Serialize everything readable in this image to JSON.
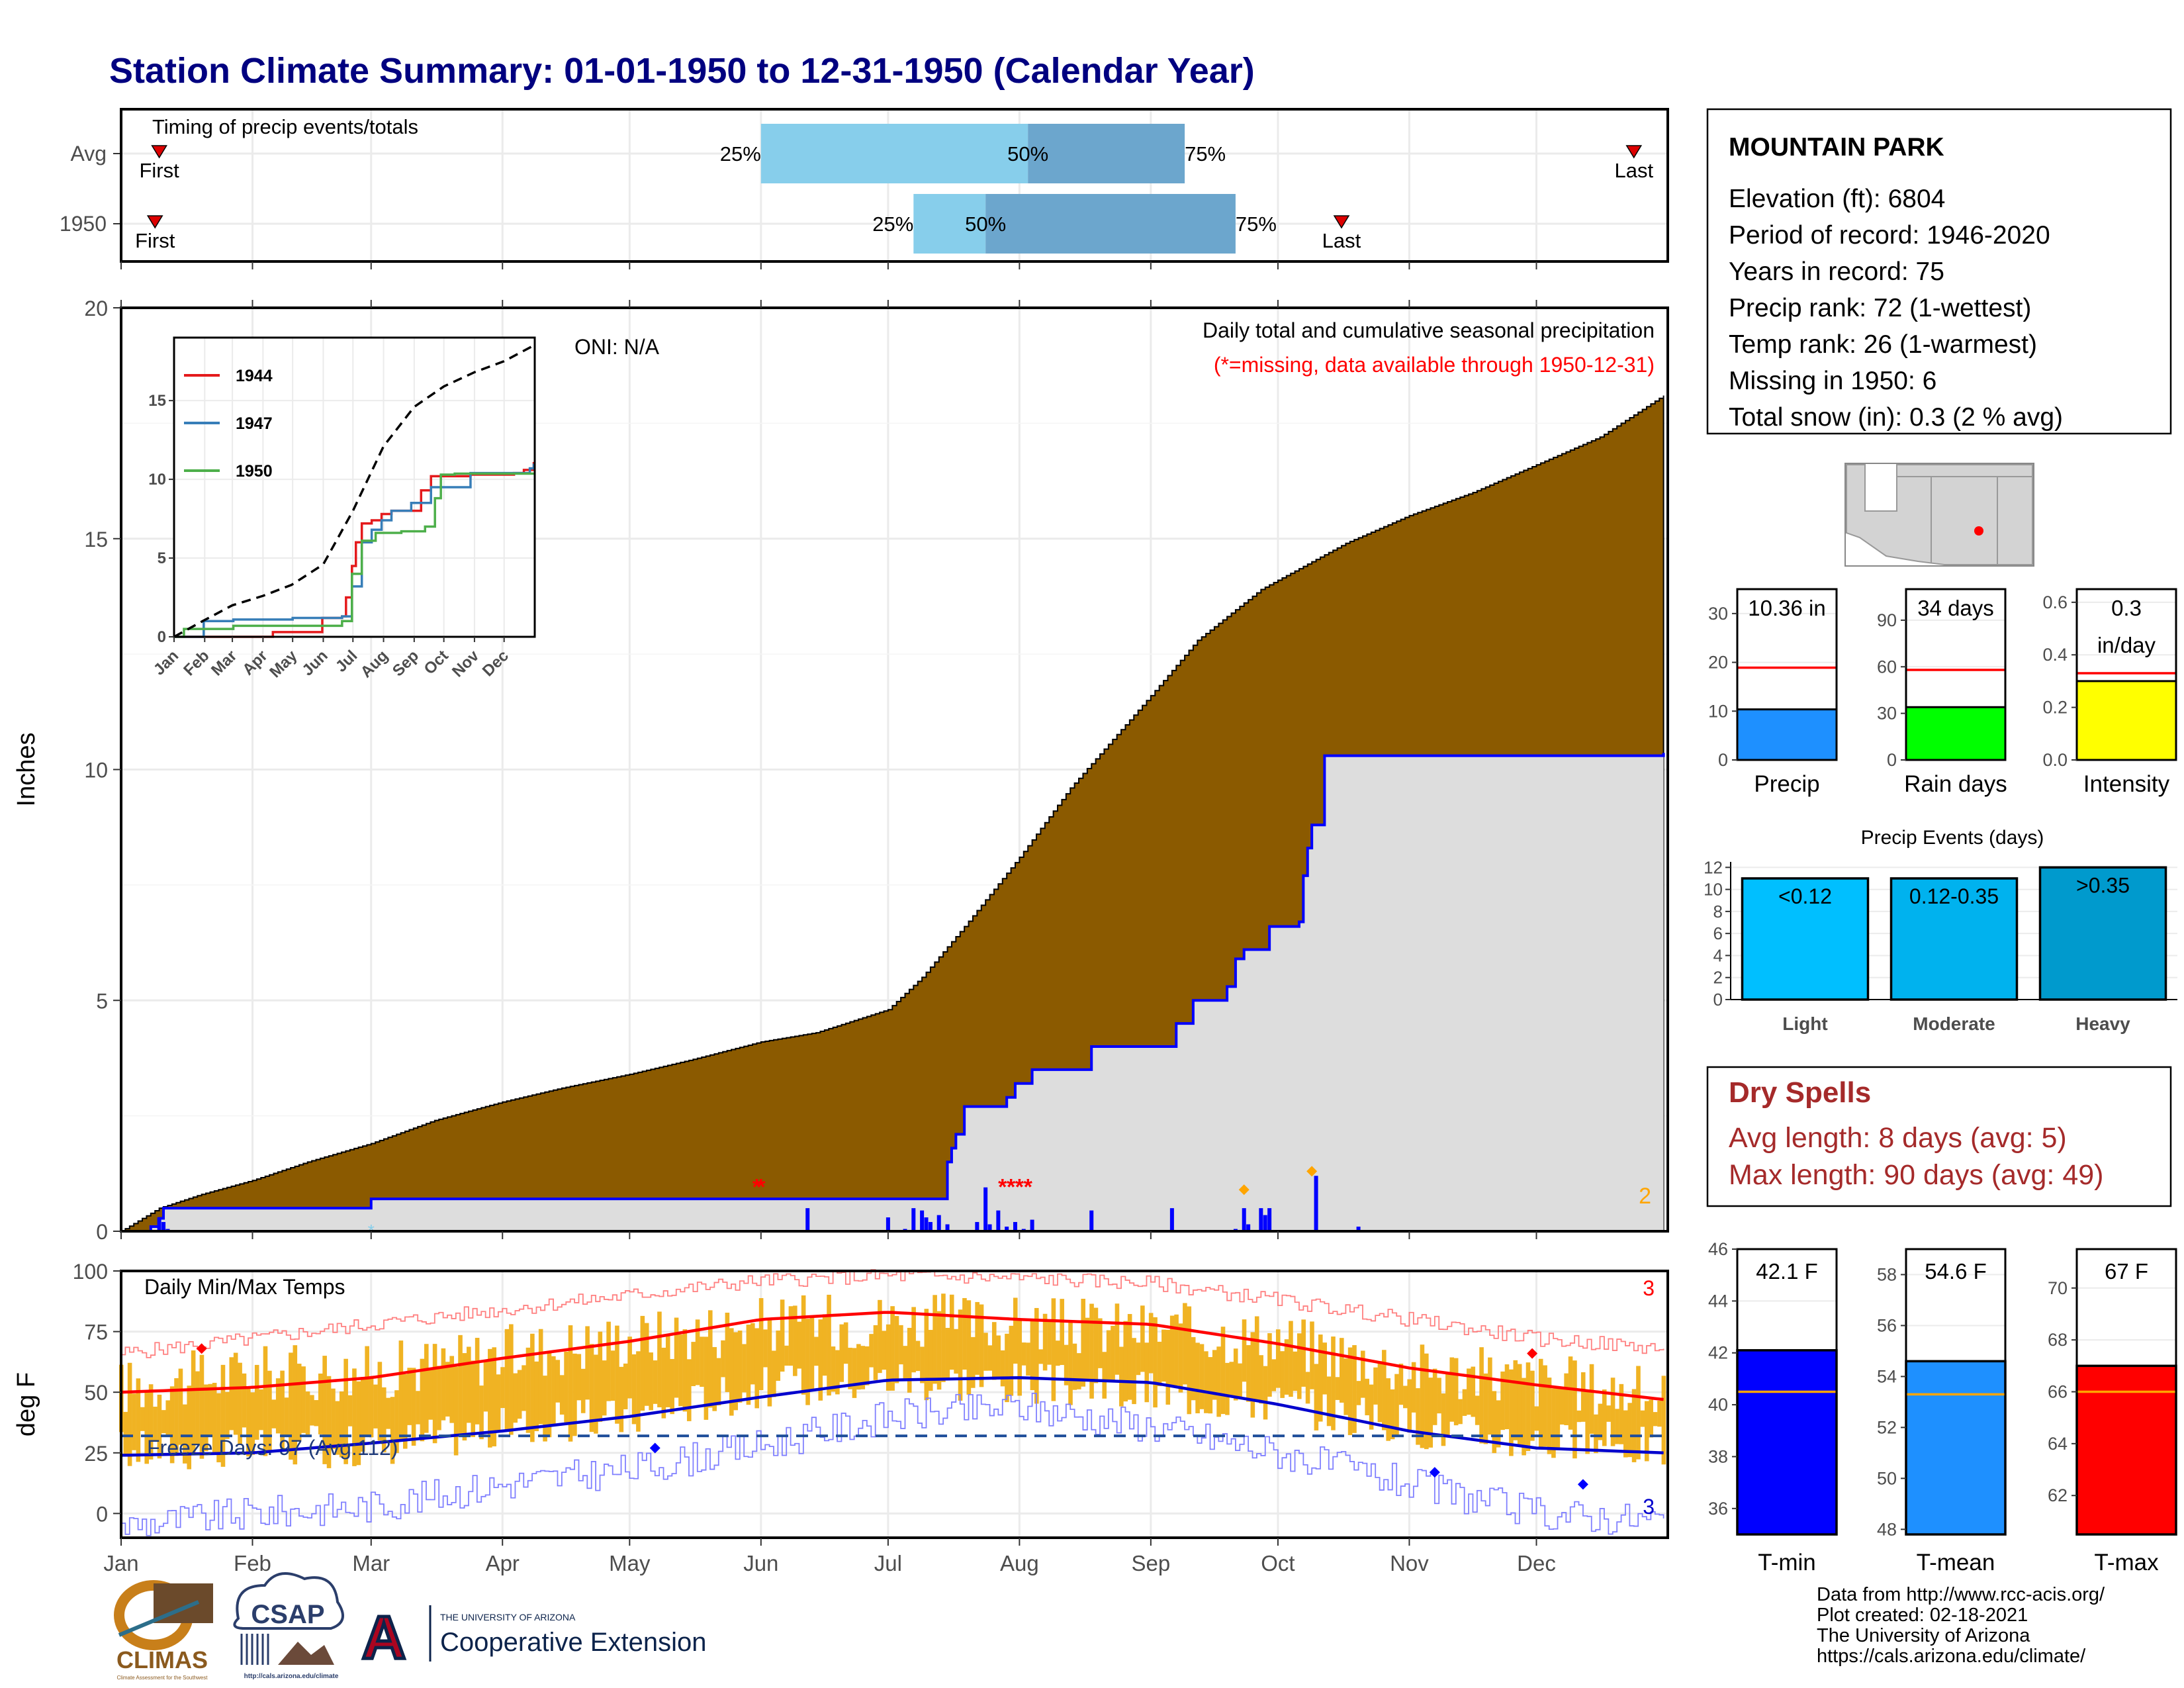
{
  "page": {
    "title": "Station Climate Summary: 01-01-1950 to 12-31-1950 (Calendar Year)",
    "months": [
      "Jan",
      "Feb",
      "Mar",
      "Apr",
      "May",
      "Jun",
      "Jul",
      "Aug",
      "Sep",
      "Oct",
      "Nov",
      "Dec"
    ],
    "month_starts_doy": [
      1,
      32,
      60,
      91,
      121,
      152,
      182,
      213,
      244,
      274,
      305,
      335
    ],
    "credits": [
      "Data from http://www.rcc-acis.org/",
      "Plot created: 02-18-2021",
      "The University of Arizona",
      "https://cals.arizona.edu/climate/"
    ],
    "logos": {
      "climas": "CLIMAS",
      "climas_sub": "Climate Assessment for the Southwest",
      "csap": "CSAP",
      "csap_url": "http://cals.arizona.edu/climate",
      "ua_line1": "THE UNIVERSITY OF ARIZONA",
      "ua_line2": "Cooperative Extension",
      "ua_letter": "A"
    }
  },
  "station": {
    "name": "MOUNTAIN PARK",
    "lines": [
      "Elevation (ft): 6804",
      "Period of record: 1946-2020",
      "Years in record: 75",
      "Precip rank: 72 (1-wettest)",
      "Temp rank: 26 (1-warmest)",
      "Missing in 1950: 6",
      "Total snow (in): 0.3 (2 % avg)"
    ],
    "marker_color": "#ff0000"
  },
  "chart_data": [
    {
      "id": "timing",
      "type": "bar",
      "title": "Timing of precip events/totals",
      "rows": [
        {
          "label": "Avg",
          "first_doy": 10,
          "last_doy": 358,
          "p25_doy": 152,
          "p50_doy": 215,
          "p75_doy": 252,
          "first_label": "First",
          "last_label": "Last",
          "p25_label": "25%",
          "p50_label": "50%",
          "p75_label": "75%"
        },
        {
          "label": "1950",
          "first_doy": 9,
          "last_doy": 289,
          "p25_doy": 188,
          "p50_doy": 205,
          "p75_doy": 264,
          "first_label": "First",
          "last_label": "Last",
          "p25_label": "25%",
          "p50_label": "50%",
          "p75_label": "75%"
        }
      ],
      "colors": {
        "light": "#87ceeb",
        "dark": "#6ca6cd",
        "marker": "#dd0000"
      }
    },
    {
      "id": "precip",
      "type": "area",
      "title": "Daily total and cumulative seasonal precipitation",
      "note": "(*=missing, data available through 1950-12-31)",
      "ylabel": "Inches",
      "ylim": [
        0,
        20
      ],
      "yticks": [
        0,
        5,
        10,
        15,
        20
      ],
      "oni_label": "ONI: N/A",
      "count_label": "2",
      "avg_cumulative": {
        "x": [
          1,
          10,
          20,
          32,
          45,
          60,
          75,
          91,
          105,
          121,
          135,
          152,
          165,
          182,
          190,
          200,
          213,
          225,
          244,
          255,
          270,
          290,
          305,
          320,
          335,
          350,
          365
        ],
        "y": [
          0,
          0.5,
          0.8,
          1.1,
          1.5,
          1.9,
          2.4,
          2.8,
          3.1,
          3.4,
          3.7,
          4.1,
          4.3,
          4.8,
          5.5,
          6.6,
          8.1,
          9.6,
          11.6,
          12.8,
          13.9,
          14.9,
          15.5,
          16.0,
          16.6,
          17.2,
          18.1
        ]
      },
      "cumulative_1950": {
        "x": [
          1,
          8,
          10,
          11,
          30,
          60,
          152,
          163,
          164,
          169,
          170,
          172,
          173,
          175,
          181,
          190,
          192,
          196,
          197,
          198,
          200,
          210,
          212,
          216,
          230,
          231,
          250,
          254,
          262,
          264,
          266,
          270,
          272,
          276,
          278,
          279,
          280,
          281,
          282,
          283,
          284,
          285,
          365
        ],
        "y": [
          0,
          0.1,
          0.28,
          0.5,
          0.5,
          0.7,
          0.7,
          0.7,
          0.7,
          0.7,
          0.7,
          0.7,
          0.7,
          0.7,
          0.7,
          0.7,
          0.7,
          1.5,
          1.8,
          2.1,
          2.7,
          2.9,
          3.2,
          3.5,
          4.0,
          4.0,
          4.5,
          5.0,
          5.3,
          5.9,
          6.1,
          6.1,
          6.6,
          6.6,
          6.6,
          6.7,
          7.7,
          8.3,
          8.8,
          8.8,
          8.8,
          10.3,
          10.36
        ]
      },
      "daily_bars": [
        {
          "doy": 10,
          "v": 0.3
        },
        {
          "doy": 11,
          "v": 0.2
        },
        {
          "doy": 12,
          "v": 0.05
        },
        {
          "doy": 163,
          "v": 0.5
        },
        {
          "doy": 182,
          "v": 0.3
        },
        {
          "doy": 186,
          "v": 0.05
        },
        {
          "doy": 188,
          "v": 0.5
        },
        {
          "doy": 190,
          "v": 0.45
        },
        {
          "doy": 191,
          "v": 0.3
        },
        {
          "doy": 192,
          "v": 0.2
        },
        {
          "doy": 194,
          "v": 0.35
        },
        {
          "doy": 196,
          "v": 0.15
        },
        {
          "doy": 203,
          "v": 0.2
        },
        {
          "doy": 205,
          "v": 0.95
        },
        {
          "doy": 206,
          "v": 0.15
        },
        {
          "doy": 208,
          "v": 0.45
        },
        {
          "doy": 210,
          "v": 0.1
        },
        {
          "doy": 212,
          "v": 0.2
        },
        {
          "doy": 214,
          "v": 0.05
        },
        {
          "doy": 216,
          "v": 0.25
        },
        {
          "doy": 230,
          "v": 0.45
        },
        {
          "doy": 249,
          "v": 0.5
        },
        {
          "doy": 264,
          "v": 0.05
        },
        {
          "doy": 266,
          "v": 0.5
        },
        {
          "doy": 267,
          "v": 0.15
        },
        {
          "doy": 270,
          "v": 0.5
        },
        {
          "doy": 271,
          "v": 0.35
        },
        {
          "doy": 272,
          "v": 0.5
        },
        {
          "doy": 283,
          "v": 1.2
        },
        {
          "doy": 293,
          "v": 0.1
        }
      ],
      "missing_doy": [
        151,
        152,
        209,
        211,
        213,
        215
      ],
      "max_marks_doy": [
        [
          266,
          0.9
        ],
        [
          282,
          1.3
        ]
      ],
      "snow_marks_doy": [
        60
      ],
      "colors": {
        "avg_fill": "#8b5a00",
        "obs_fill": "#dddddd",
        "obs_line": "#0000ff",
        "bar": "#0000ff",
        "missing": "#ff0000",
        "max_mark": "#ffa500"
      }
    },
    {
      "id": "inset",
      "type": "line",
      "xlabels": [
        "Jan",
        "Feb",
        "Mar",
        "Apr",
        "May",
        "Jun",
        "Jul",
        "Aug",
        "Sep",
        "Oct",
        "Nov",
        "Dec"
      ],
      "ylim": [
        0,
        19
      ],
      "yticks": [
        0,
        5,
        10,
        15
      ],
      "series": [
        {
          "name": "1944",
          "color": "#e41a1c",
          "x": [
            1,
            60,
            100,
            150,
            170,
            175,
            180,
            185,
            190,
            200,
            210,
            220,
            250,
            260,
            300,
            345,
            355,
            365
          ],
          "y": [
            0,
            0,
            0.3,
            1.2,
            1.3,
            2.5,
            4.5,
            6.0,
            7.2,
            7.4,
            7.8,
            8.0,
            9.3,
            10.2,
            10.3,
            10.4,
            10.6,
            11.1
          ]
        },
        {
          "name": "1947",
          "color": "#377eb8",
          "x": [
            1,
            30,
            60,
            120,
            150,
            170,
            180,
            190,
            200,
            210,
            220,
            240,
            260,
            300,
            360,
            365
          ],
          "y": [
            0,
            1.0,
            1.1,
            1.2,
            1.2,
            1.3,
            3.2,
            6.0,
            6.8,
            7.4,
            8.0,
            8.5,
            9.5,
            10.4,
            10.7,
            11.0
          ]
        },
        {
          "name": "1950",
          "color": "#4daf4a",
          "x": [
            1,
            10,
            60,
            120,
            152,
            170,
            180,
            190,
            205,
            215,
            230,
            255,
            265,
            270,
            285,
            365
          ],
          "y": [
            0,
            0.5,
            0.7,
            0.7,
            0.7,
            1.0,
            4.0,
            6.1,
            6.6,
            6.6,
            6.7,
            7.0,
            8.8,
            10.3,
            10.36,
            10.36
          ]
        }
      ],
      "avg": {
        "x": [
          1,
          30,
          60,
          91,
          120,
          152,
          182,
          213,
          244,
          274,
          305,
          335,
          365
        ],
        "y": [
          0,
          1.0,
          2.0,
          2.6,
          3.3,
          4.6,
          8.0,
          12.1,
          14.6,
          15.9,
          16.8,
          17.5,
          18.5
        ]
      }
    },
    {
      "id": "temps",
      "type": "line",
      "title": "Daily Min/Max Temps",
      "ylabel": "deg F",
      "ylim": [
        -10,
        100
      ],
      "yticks": [
        0,
        25,
        50,
        75,
        100
      ],
      "freeze_line": 32,
      "freeze_label": "Freeze Days: 97 (Avg:112)",
      "count_top": "3",
      "count_bottom": "3",
      "avg_max": {
        "x": [
          1,
          32,
          60,
          91,
          121,
          152,
          182,
          213,
          244,
          274,
          305,
          335,
          365
        ],
        "y": [
          50,
          52,
          56,
          64,
          71,
          80,
          83,
          80,
          78,
          70,
          60,
          53,
          47
        ]
      },
      "avg_min": {
        "x": [
          1,
          32,
          60,
          91,
          121,
          152,
          182,
          213,
          244,
          274,
          305,
          335,
          365
        ],
        "y": [
          24,
          25,
          29,
          34,
          40,
          48,
          55,
          56,
          54,
          45,
          34,
          27,
          25
        ]
      },
      "record_max": {
        "x": [
          1,
          32,
          60,
          91,
          121,
          152,
          182,
          213,
          244,
          274,
          305,
          335,
          365
        ],
        "y": [
          66,
          72,
          78,
          84,
          90,
          96,
          98,
          97,
          95,
          88,
          80,
          72,
          68
        ]
      },
      "record_min": {
        "x": [
          1,
          32,
          60,
          91,
          121,
          152,
          182,
          213,
          244,
          274,
          305,
          335,
          365
        ],
        "y": [
          -5,
          0,
          3,
          12,
          18,
          28,
          40,
          44,
          36,
          25,
          12,
          0,
          -3
        ]
      },
      "obs_max_base": {
        "x": [
          1,
          32,
          60,
          91,
          121,
          152,
          182,
          213,
          244,
          274,
          305,
          335,
          365
        ],
        "y": [
          52,
          58,
          58,
          66,
          72,
          78,
          80,
          78,
          76,
          72,
          60,
          55,
          48
        ]
      },
      "obs_min_base": {
        "x": [
          1,
          32,
          60,
          91,
          121,
          152,
          182,
          213,
          244,
          274,
          305,
          335,
          365
        ],
        "y": [
          26,
          27,
          28,
          35,
          40,
          52,
          56,
          54,
          50,
          46,
          36,
          30,
          28
        ]
      },
      "record_marks": [
        [
          20,
          68,
          "#ff0000"
        ],
        [
          334,
          66,
          "#ff0000"
        ],
        [
          127,
          27,
          "#0000ff"
        ],
        [
          311,
          17,
          "#0000ff"
        ],
        [
          346,
          12,
          "#0000ff"
        ]
      ],
      "colors": {
        "bar": "#f0b323",
        "avg_max": "#ff0000",
        "avg_min": "#0000cd",
        "rec_max": "#ff8080",
        "rec_min": "#8080ff",
        "freeze": "#1f4e9a"
      }
    },
    {
      "id": "precip_summary",
      "type": "bar",
      "panels": [
        {
          "name": "Precip",
          "value": 10.36,
          "label_top": "10.36 in",
          "label_bottom": "",
          "avg": 18.9,
          "ylim": [
            0,
            35
          ],
          "yticks": [
            0,
            10,
            20,
            30
          ],
          "color": "#1e90ff",
          "tick_fmt": 0
        },
        {
          "name": "Rain days",
          "value": 34,
          "label_top": "34 days",
          "label_bottom": "",
          "avg": 58,
          "ylim": [
            0,
            110
          ],
          "yticks": [
            0,
            30,
            60,
            90
          ],
          "color": "#00ff00",
          "tick_fmt": 0
        },
        {
          "name": "Intensity",
          "value": 0.3,
          "label_top": "0.3",
          "label_bottom": "in/day",
          "avg": 0.33,
          "ylim": [
            0,
            0.65
          ],
          "yticks": [
            0.0,
            0.2,
            0.4,
            0.6
          ],
          "color": "#ffff00",
          "tick_fmt": 1
        }
      ],
      "avg_color": "#ff0000"
    },
    {
      "id": "events",
      "type": "bar",
      "title": "Precip Events (days)",
      "categories": [
        "Light",
        "Moderate",
        "Heavy"
      ],
      "labels": [
        "<0.12",
        "0.12-0.35",
        ">0.35"
      ],
      "values": [
        11,
        11,
        12
      ],
      "ylim": [
        0,
        12.5
      ],
      "yticks": [
        0,
        2,
        4,
        6,
        8,
        10,
        12
      ],
      "colors": [
        "#00bfff",
        "#00b2ee",
        "#009acd"
      ]
    },
    {
      "id": "dry_spells",
      "type": "table",
      "title": "Dry Spells",
      "lines": [
        "Avg length: 8 days (avg: 5)",
        "Max length: 90 days (avg: 49)"
      ],
      "color": "#a52a2a"
    },
    {
      "id": "temp_summary",
      "type": "bar",
      "panels": [
        {
          "name": "T-min",
          "value": 42.1,
          "label": "42.1 F",
          "avg": 40.5,
          "ylim": [
            35,
            46
          ],
          "yticks": [
            36,
            38,
            40,
            42,
            44,
            46
          ],
          "color": "#0000ff"
        },
        {
          "name": "T-mean",
          "value": 54.6,
          "label": "54.6 F",
          "avg": 53.3,
          "ylim": [
            47.8,
            59
          ],
          "yticks": [
            48,
            50,
            52,
            54,
            56,
            58
          ],
          "color": "#1e90ff"
        },
        {
          "name": "T-max",
          "value": 67,
          "label": "67 F",
          "avg": 66,
          "ylim": [
            60.5,
            71.5
          ],
          "yticks": [
            62,
            64,
            66,
            68,
            70
          ],
          "color": "#ff0000"
        }
      ],
      "avg_color": "#ffa500"
    }
  ]
}
